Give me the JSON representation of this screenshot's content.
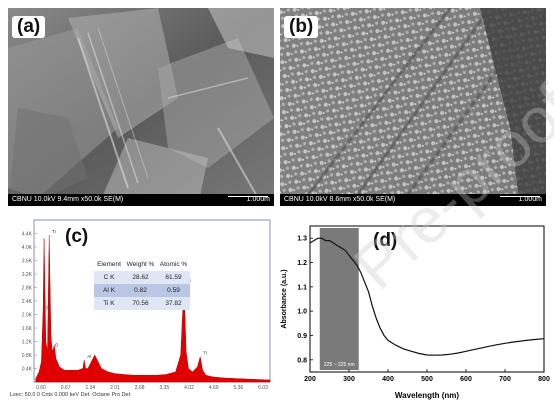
{
  "panels": {
    "a": {
      "label": "(a)",
      "sem_info": "CBNU 10.0kV 9.4mm x50.0k SE(M)",
      "scale": "1.00um"
    },
    "b": {
      "label": "(b)",
      "sem_info": "CBNU 10.0kV 8.6mm x50.0k SE(M)",
      "scale": "1.00um"
    },
    "c": {
      "label": "(c)",
      "footer": "Lsec: 50.0 0 Cnts 0.000 keV Det: Octane Pro Det"
    },
    "d": {
      "label": "(d)"
    }
  },
  "watermark": "Pre-proof",
  "edx_table": {
    "headers": [
      "Element",
      "Weight %",
      "Atomic %"
    ],
    "rows": [
      [
        "C K",
        "28.62",
        "61.59"
      ],
      [
        "Al K",
        "0.82",
        "0.59"
      ],
      [
        "Ti K",
        "70.56",
        "37.82"
      ]
    ]
  },
  "chart_data": [
    {
      "type": "bar",
      "panel": "c",
      "title": "",
      "xlabel": "",
      "ylabel": "",
      "xlim": [
        0,
        7.0
      ],
      "ylim": [
        0,
        4.8
      ],
      "x_ticks": [
        "0.60",
        "0.67",
        "1.34",
        "2.01",
        "2.68",
        "3.35",
        "4.02",
        "4.69",
        "5.36",
        "6.03"
      ],
      "y_ticks": [
        "0.4K",
        "0.8K",
        "1.2K",
        "1.6K",
        "2.0K",
        "2.4K",
        "2.8K",
        "3.2K",
        "3.6K",
        "4.0K",
        "4.4K"
      ],
      "peak_labels": [
        "C",
        "Ti",
        "O",
        "Al",
        "Ti",
        "Ti"
      ],
      "color": "#e00000",
      "spectrum": {
        "x": [
          0.05,
          0.15,
          0.22,
          0.27,
          0.3,
          0.35,
          0.4,
          0.45,
          0.5,
          0.53,
          0.56,
          0.6,
          0.65,
          0.75,
          0.9,
          1.1,
          1.3,
          1.45,
          1.49,
          1.53,
          1.6,
          1.8,
          2.0,
          2.2,
          2.4,
          2.7,
          3.0,
          3.3,
          3.6,
          3.9,
          4.2,
          4.35,
          4.45,
          4.51,
          4.58,
          4.7,
          4.85,
          4.93,
          5.0,
          5.1,
          5.3,
          5.6,
          6.0,
          6.5,
          7.0
        ],
        "y": [
          0.1,
          0.3,
          0.6,
          2.1,
          4.25,
          1.2,
          0.9,
          4.35,
          1.4,
          1.0,
          0.9,
          1.1,
          0.7,
          0.45,
          0.35,
          0.35,
          0.35,
          0.4,
          0.65,
          0.4,
          0.4,
          0.8,
          0.4,
          0.3,
          0.25,
          0.22,
          0.2,
          0.2,
          0.2,
          0.22,
          0.3,
          0.8,
          2.9,
          0.9,
          0.4,
          0.3,
          0.45,
          0.75,
          0.35,
          0.2,
          0.15,
          0.12,
          0.1,
          0.08,
          0.06
        ]
      }
    },
    {
      "type": "line",
      "panel": "d",
      "title": "",
      "xlabel": "Wavelength (nm)",
      "ylabel": "Absorbance (a.u.)",
      "xlim": [
        200,
        800
      ],
      "ylim": [
        0.75,
        1.35
      ],
      "x_ticks": [
        200,
        300,
        400,
        500,
        600,
        700,
        800
      ],
      "y_ticks": [
        0.8,
        0.9,
        1.0,
        1.1,
        1.2,
        1.3
      ],
      "highlight_band": {
        "x": [
          225,
          325
        ],
        "label": "225 ~ 325 nm"
      },
      "series": [
        {
          "color": "#111111",
          "x": [
            200,
            210,
            220,
            230,
            240,
            250,
            260,
            270,
            280,
            290,
            300,
            310,
            320,
            330,
            340,
            350,
            360,
            370,
            380,
            390,
            400,
            420,
            440,
            460,
            480,
            500,
            520,
            540,
            560,
            580,
            600,
            620,
            640,
            660,
            680,
            700,
            720,
            740,
            760,
            780,
            800
          ],
          "y": [
            1.28,
            1.29,
            1.3,
            1.3,
            1.29,
            1.29,
            1.28,
            1.27,
            1.26,
            1.25,
            1.23,
            1.21,
            1.19,
            1.16,
            1.12,
            1.08,
            1.02,
            0.97,
            0.93,
            0.9,
            0.88,
            0.86,
            0.845,
            0.835,
            0.826,
            0.82,
            0.819,
            0.82,
            0.823,
            0.828,
            0.835,
            0.842,
            0.849,
            0.856,
            0.862,
            0.868,
            0.873,
            0.877,
            0.881,
            0.884,
            0.887
          ]
        }
      ]
    }
  ]
}
